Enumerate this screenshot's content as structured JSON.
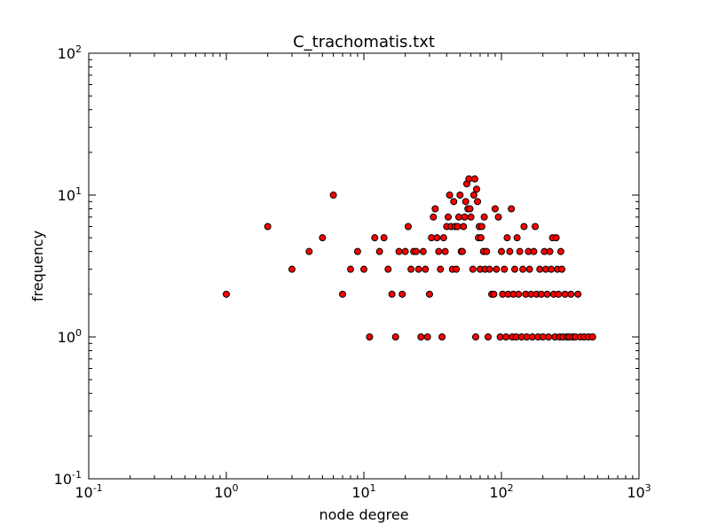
{
  "chart_data": {
    "type": "scatter",
    "title": "C_trachomatis.txt",
    "xlabel": "node degree",
    "ylabel": "frequency",
    "xscale": "log",
    "yscale": "log",
    "xlim": [
      0.1,
      1000
    ],
    "ylim": [
      0.1,
      100
    ],
    "grid": false,
    "xticks": [
      {
        "base": "10",
        "exp": "-1",
        "value": 0.1
      },
      {
        "base": "10",
        "exp": "0",
        "value": 1
      },
      {
        "base": "10",
        "exp": "1",
        "value": 10
      },
      {
        "base": "10",
        "exp": "2",
        "value": 100
      },
      {
        "base": "10",
        "exp": "3",
        "value": 1000
      }
    ],
    "yticks": [
      {
        "base": "10",
        "exp": "-1",
        "value": 0.1
      },
      {
        "base": "10",
        "exp": "0",
        "value": 1
      },
      {
        "base": "10",
        "exp": "1",
        "value": 10
      },
      {
        "base": "10",
        "exp": "2",
        "value": 100
      }
    ],
    "marker_color": "#ff0000",
    "marker_edge_color": "#000000",
    "points": [
      [
        1,
        2
      ],
      [
        2,
        6
      ],
      [
        3,
        3
      ],
      [
        4,
        4
      ],
      [
        5,
        5
      ],
      [
        6,
        10
      ],
      [
        7,
        2
      ],
      [
        8,
        3
      ],
      [
        9,
        4
      ],
      [
        10,
        3
      ],
      [
        11,
        1
      ],
      [
        12,
        5
      ],
      [
        13,
        4
      ],
      [
        14,
        5
      ],
      [
        15,
        3
      ],
      [
        16,
        2
      ],
      [
        17,
        1
      ],
      [
        18,
        4
      ],
      [
        19,
        2
      ],
      [
        20,
        4
      ],
      [
        21,
        6
      ],
      [
        22,
        3
      ],
      [
        23,
        4
      ],
      [
        24,
        4
      ],
      [
        25,
        3
      ],
      [
        26,
        1
      ],
      [
        27,
        4
      ],
      [
        28,
        3
      ],
      [
        29,
        1
      ],
      [
        30,
        2
      ],
      [
        31,
        5
      ],
      [
        32,
        7
      ],
      [
        33,
        8
      ],
      [
        34,
        5
      ],
      [
        35,
        4
      ],
      [
        36,
        3
      ],
      [
        37,
        1
      ],
      [
        38,
        5
      ],
      [
        39,
        4
      ],
      [
        40,
        6
      ],
      [
        41,
        7
      ],
      [
        42,
        10
      ],
      [
        43,
        6
      ],
      [
        44,
        3
      ],
      [
        45,
        9
      ],
      [
        46,
        6
      ],
      [
        47,
        3
      ],
      [
        48,
        6
      ],
      [
        49,
        7
      ],
      [
        50,
        10
      ],
      [
        51,
        4
      ],
      [
        52,
        4
      ],
      [
        53,
        6
      ],
      [
        54,
        7
      ],
      [
        55,
        9
      ],
      [
        56,
        12
      ],
      [
        57,
        8
      ],
      [
        58,
        13
      ],
      [
        59,
        8
      ],
      [
        60,
        7
      ],
      [
        62,
        3
      ],
      [
        63,
        10
      ],
      [
        64,
        13
      ],
      [
        65,
        1
      ],
      [
        66,
        11
      ],
      [
        67,
        9
      ],
      [
        68,
        5
      ],
      [
        69,
        6
      ],
      [
        70,
        3
      ],
      [
        71,
        5
      ],
      [
        72,
        6
      ],
      [
        74,
        4
      ],
      [
        75,
        7
      ],
      [
        76,
        3
      ],
      [
        78,
        4
      ],
      [
        80,
        1
      ],
      [
        82,
        3
      ],
      [
        85,
        2
      ],
      [
        88,
        2
      ],
      [
        90,
        8
      ],
      [
        92,
        3
      ],
      [
        95,
        7
      ],
      [
        98,
        1
      ],
      [
        100,
        4
      ],
      [
        102,
        2
      ],
      [
        105,
        3
      ],
      [
        108,
        1
      ],
      [
        110,
        5
      ],
      [
        112,
        2
      ],
      [
        115,
        4
      ],
      [
        118,
        8
      ],
      [
        120,
        1
      ],
      [
        122,
        2
      ],
      [
        125,
        3
      ],
      [
        128,
        1
      ],
      [
        130,
        5
      ],
      [
        133,
        2
      ],
      [
        136,
        4
      ],
      [
        140,
        1
      ],
      [
        143,
        3
      ],
      [
        146,
        6
      ],
      [
        150,
        2
      ],
      [
        153,
        1
      ],
      [
        157,
        4
      ],
      [
        160,
        3
      ],
      [
        164,
        2
      ],
      [
        168,
        1
      ],
      [
        172,
        4
      ],
      [
        176,
        6
      ],
      [
        180,
        2
      ],
      [
        185,
        1
      ],
      [
        190,
        3
      ],
      [
        195,
        2
      ],
      [
        200,
        1
      ],
      [
        205,
        4
      ],
      [
        210,
        3
      ],
      [
        215,
        2
      ],
      [
        220,
        1
      ],
      [
        225,
        4
      ],
      [
        230,
        3
      ],
      [
        235,
        5
      ],
      [
        240,
        2
      ],
      [
        245,
        1
      ],
      [
        250,
        5
      ],
      [
        255,
        3
      ],
      [
        260,
        2
      ],
      [
        265,
        1
      ],
      [
        270,
        4
      ],
      [
        275,
        3
      ],
      [
        280,
        1
      ],
      [
        290,
        2
      ],
      [
        300,
        1
      ],
      [
        310,
        1
      ],
      [
        320,
        2
      ],
      [
        330,
        1
      ],
      [
        345,
        1
      ],
      [
        360,
        2
      ],
      [
        375,
        1
      ],
      [
        400,
        1
      ],
      [
        430,
        1
      ],
      [
        460,
        1
      ]
    ]
  }
}
